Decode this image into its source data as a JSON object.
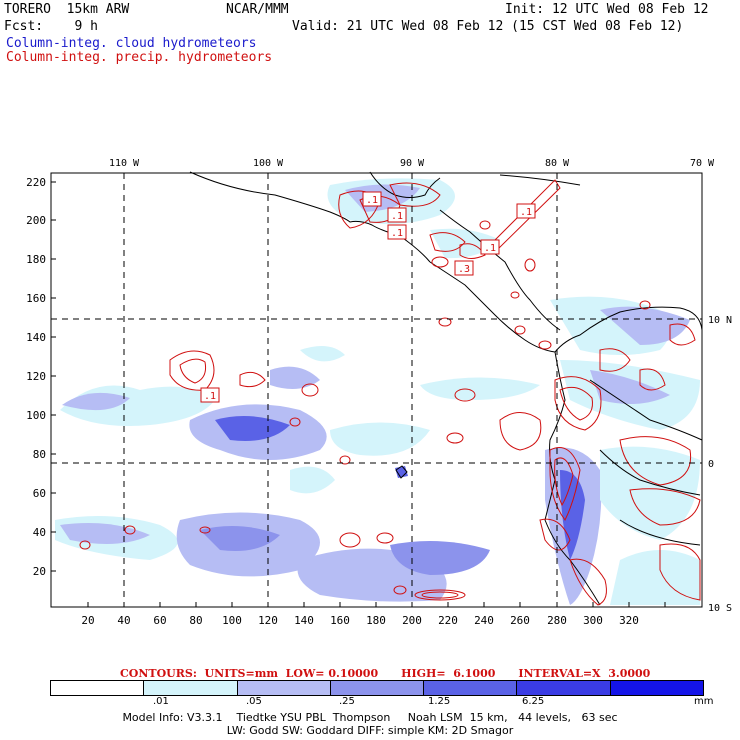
{
  "header": {
    "model": "TORERO  15km ARW",
    "org": "NCAR/MMM",
    "init": "Init: 12 UTC Wed 08 Feb 12",
    "fcst": "Fcst:    9 h",
    "valid": "Valid: 21 UTC Wed 08 Feb 12 (15 CST Wed 08 Feb 12)",
    "field1": "Column-integ. cloud hydrometeors",
    "field2": "Column-integ. precip. hydrometeors"
  },
  "map": {
    "lon_labels": [
      "110 W",
      "100 W",
      "90 W",
      "80 W",
      "70 W"
    ],
    "lat_labels": [
      "10 N",
      "0",
      "10 S"
    ],
    "x_ticks": [
      "20",
      "40",
      "60",
      "80",
      "100",
      "120",
      "140",
      "160",
      "180",
      "200",
      "220",
      "240",
      "260",
      "280",
      "300",
      "320"
    ],
    "y_ticks": [
      "220",
      "200",
      "180",
      "160",
      "140",
      "120",
      "100",
      "80",
      "60",
      "40",
      "20"
    ],
    "contour_labels": [
      ".1",
      ".1",
      ".1",
      ".1",
      ".1",
      ".3",
      ".1"
    ]
  },
  "contours": "CONTOURS:  UNITS=mm  LOW= 0.10000      HIGH=  6.1000      INTERVAL=X  3.0000",
  "legend": {
    "levels": [
      ".01",
      ".05",
      ".25",
      "1.25",
      "6.25"
    ],
    "unit": "mm",
    "colors": [
      "#ffffff",
      "#d4f4fb",
      "#b6bdf4",
      "#8c93ec",
      "#5a62e6",
      "#3a3ce4",
      "#1414e8"
    ]
  },
  "info": {
    "line1": "Model Info: V3.3.1    Tiedtke YSU PBL  Thompson     Noah LSM  15 km,   44 levels,   63 sec",
    "line2": "LW: Godd SW: Goddard DIFF: simple KM: 2D Smagor"
  }
}
